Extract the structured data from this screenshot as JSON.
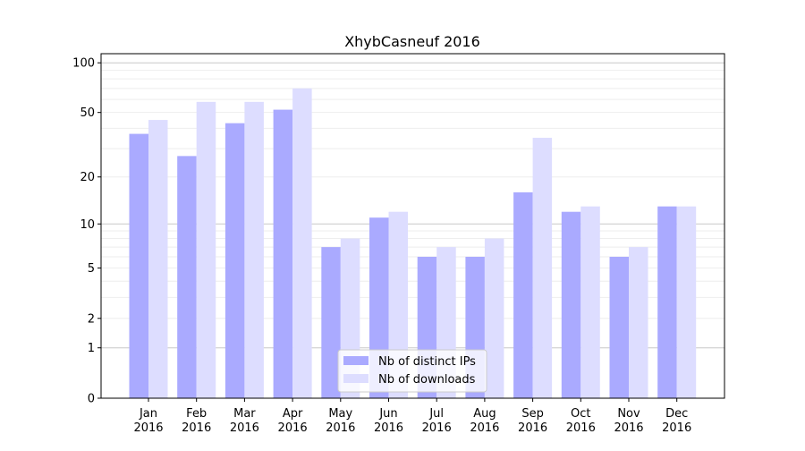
{
  "chart_data": {
    "type": "bar",
    "title": "XhybCasneuf 2016",
    "xlabel": "",
    "ylabel": "",
    "yscale": "log(1+y)",
    "ylim": [
      0,
      110
    ],
    "yticks": [
      0,
      1,
      2,
      5,
      10,
      20,
      50,
      100
    ],
    "grid": true,
    "legend_position": "bottom-center",
    "categories": [
      "Jan\n2016",
      "Feb\n2016",
      "Mar\n2016",
      "Apr\n2016",
      "May\n2016",
      "Jun\n2016",
      "Jul\n2016",
      "Aug\n2016",
      "Sep\n2016",
      "Oct\n2016",
      "Nov\n2016",
      "Dec\n2016"
    ],
    "series": [
      {
        "name": "Nb of distinct IPs",
        "color": "#aaaaff",
        "values": [
          37,
          27,
          43,
          52,
          7,
          11,
          6,
          6,
          16,
          12,
          6,
          13
        ]
      },
      {
        "name": "Nb of downloads",
        "color": "#ddddff",
        "values": [
          45,
          58,
          58,
          70,
          8,
          12,
          7,
          8,
          35,
          13,
          7,
          13
        ]
      }
    ]
  }
}
